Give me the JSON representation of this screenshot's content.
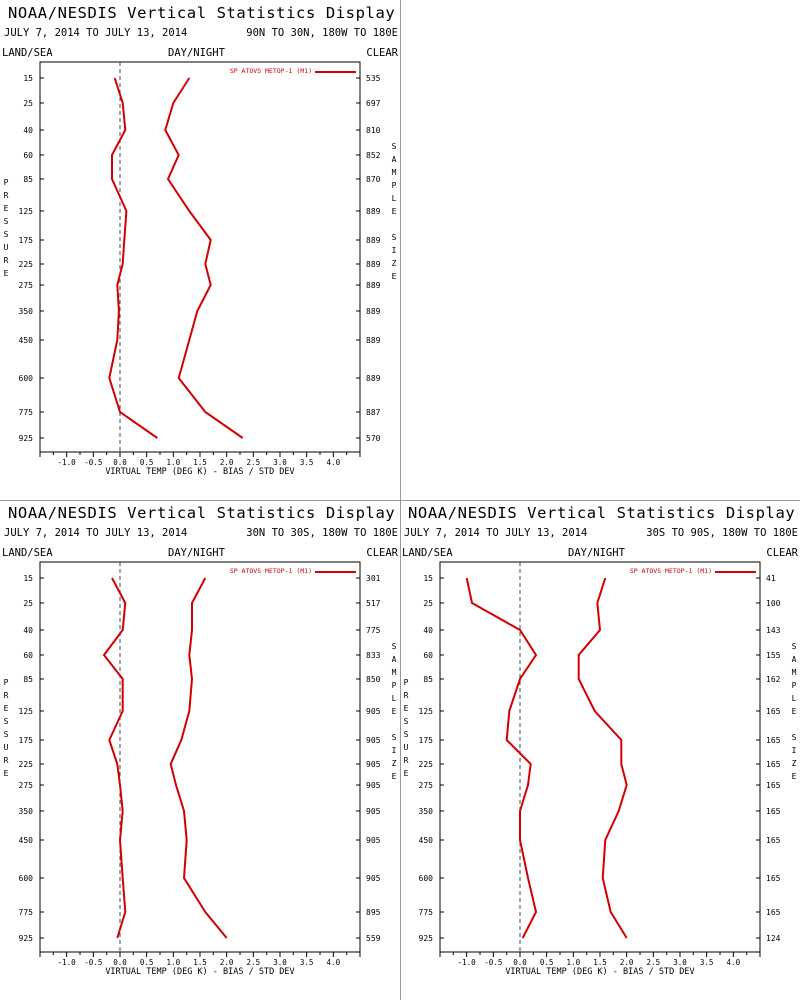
{
  "panels": [
    {
      "title": "NOAA/NESDIS Vertical Statistics Display",
      "date": "JULY 7, 2014 TO JULY 13, 2014",
      "region": "90N TO 30N, 180W TO 180E",
      "land_sea": "LAND/SEA",
      "day_night": "DAY/NIGHT",
      "clear": "CLEAR",
      "ylabel_letters": [
        "P",
        "R",
        "E",
        "S",
        "S",
        "U",
        "R",
        "E"
      ],
      "sample_size_letters": [
        "S",
        "A",
        "M",
        "P",
        "L",
        "E",
        "",
        "S",
        "I",
        "Z",
        "E"
      ]
    },
    {
      "title": "NOAA/NESDIS Vertical Statistics Display",
      "date": "JULY 7, 2014 TO JULY 13, 2014",
      "region": "30N TO 30S, 180W TO 180E",
      "land_sea": "LAND/SEA",
      "day_night": "DAY/NIGHT",
      "clear": "CLEAR",
      "ylabel_letters": [
        "P",
        "R",
        "E",
        "S",
        "S",
        "U",
        "R",
        "E"
      ],
      "sample_size_letters": [
        "S",
        "A",
        "M",
        "P",
        "L",
        "E",
        "",
        "S",
        "I",
        "Z",
        "E"
      ]
    },
    {
      "title": "NOAA/NESDIS Vertical Statistics Display",
      "date": "JULY 7, 2014 TO JULY 13, 2014",
      "region": "30S TO 90S, 180W TO 180E",
      "land_sea": "LAND/SEA",
      "day_night": "DAY/NIGHT",
      "clear": "CLEAR",
      "ylabel_letters": [
        "P",
        "R",
        "E",
        "S",
        "S",
        "U",
        "R",
        "E"
      ],
      "sample_size_letters": [
        "S",
        "A",
        "M",
        "P",
        "L",
        "E",
        "",
        "S",
        "I",
        "Z",
        "E"
      ]
    }
  ],
  "chart_data": [
    {
      "type": "line",
      "title": "NOAA/NESDIS Vertical Statistics Display",
      "xlabel": "VIRTUAL TEMP (DEG K) - BIAS / STD DEV",
      "ylabel": "PRESSURE",
      "y2label": "SAMPLE SIZE",
      "xlim": [
        -1.5,
        4.5
      ],
      "x_ticks": [
        "-1.0",
        "-0.5",
        "0.0",
        "0.5",
        "1.0",
        "1.5",
        "2.0",
        "2.5",
        "3.0",
        "3.5",
        "4.0"
      ],
      "pressure_levels": [
        "15",
        "25",
        "40",
        "60",
        "85",
        "125",
        "175",
        "225",
        "275",
        "350",
        "450",
        "600",
        "775",
        "925"
      ],
      "sample_sizes": [
        "535",
        "697",
        "810",
        "852",
        "870",
        "889",
        "889",
        "889",
        "889",
        "889",
        "889",
        "889",
        "887",
        "570"
      ],
      "legend": "SP ATOVS METOP-1 (M1)",
      "series_color": "#d40000",
      "bias": [
        -0.1,
        0.05,
        0.1,
        -0.15,
        -0.15,
        0.12,
        0.08,
        0.05,
        -0.05,
        -0.02,
        -0.05,
        -0.2,
        0.0,
        0.7
      ],
      "std_dev": [
        1.3,
        1.0,
        0.85,
        1.1,
        0.9,
        1.3,
        1.7,
        1.6,
        1.7,
        1.45,
        1.3,
        1.1,
        1.6,
        2.3
      ]
    },
    {
      "type": "line",
      "title": "NOAA/NESDIS Vertical Statistics Display",
      "xlabel": "VIRTUAL TEMP (DEG K) - BIAS / STD DEV",
      "ylabel": "PRESSURE",
      "y2label": "SAMPLE SIZE",
      "xlim": [
        -1.5,
        4.5
      ],
      "x_ticks": [
        "-1.0",
        "-0.5",
        "0.0",
        "0.5",
        "1.0",
        "1.5",
        "2.0",
        "2.5",
        "3.0",
        "3.5",
        "4.0"
      ],
      "pressure_levels": [
        "15",
        "25",
        "40",
        "60",
        "85",
        "125",
        "175",
        "225",
        "275",
        "350",
        "450",
        "600",
        "775",
        "925"
      ],
      "sample_sizes": [
        "301",
        "517",
        "775",
        "833",
        "850",
        "905",
        "905",
        "905",
        "905",
        "905",
        "905",
        "905",
        "895",
        "559"
      ],
      "legend": "SP ATOVS METOP-1 (M1)",
      "series_color": "#d40000",
      "bias": [
        -0.15,
        0.1,
        0.05,
        -0.3,
        0.05,
        0.05,
        -0.2,
        -0.05,
        0.0,
        0.05,
        0.0,
        0.05,
        0.1,
        -0.05
      ],
      "std_dev": [
        1.6,
        1.35,
        1.35,
        1.3,
        1.35,
        1.3,
        1.15,
        0.95,
        1.05,
        1.2,
        1.25,
        1.2,
        1.6,
        2.0
      ]
    },
    {
      "type": "line",
      "title": "NOAA/NESDIS Vertical Statistics Display",
      "xlabel": "VIRTUAL TEMP (DEG K) - BIAS / STD DEV",
      "ylabel": "PRESSURE",
      "y2label": "SAMPLE SIZE",
      "xlim": [
        -1.5,
        4.5
      ],
      "x_ticks": [
        "-1.0",
        "-0.5",
        "0.0",
        "0.5",
        "1.0",
        "1.5",
        "2.0",
        "2.5",
        "3.0",
        "3.5",
        "4.0"
      ],
      "pressure_levels": [
        "15",
        "25",
        "40",
        "60",
        "85",
        "125",
        "175",
        "225",
        "275",
        "350",
        "450",
        "600",
        "775",
        "925"
      ],
      "sample_sizes": [
        "41",
        "100",
        "143",
        "155",
        "162",
        "165",
        "165",
        "165",
        "165",
        "165",
        "165",
        "165",
        "165",
        "124"
      ],
      "legend": "SP ATOVS METOP-1 (M1)",
      "series_color": "#d40000",
      "bias": [
        -1.0,
        -0.9,
        0.0,
        0.3,
        0.0,
        -0.2,
        -0.25,
        0.2,
        0.15,
        0.0,
        0.0,
        0.15,
        0.3,
        0.05
      ],
      "std_dev": [
        1.6,
        1.45,
        1.5,
        1.1,
        1.1,
        1.4,
        1.9,
        1.9,
        2.0,
        1.85,
        1.6,
        1.55,
        1.7,
        2.0
      ]
    }
  ]
}
